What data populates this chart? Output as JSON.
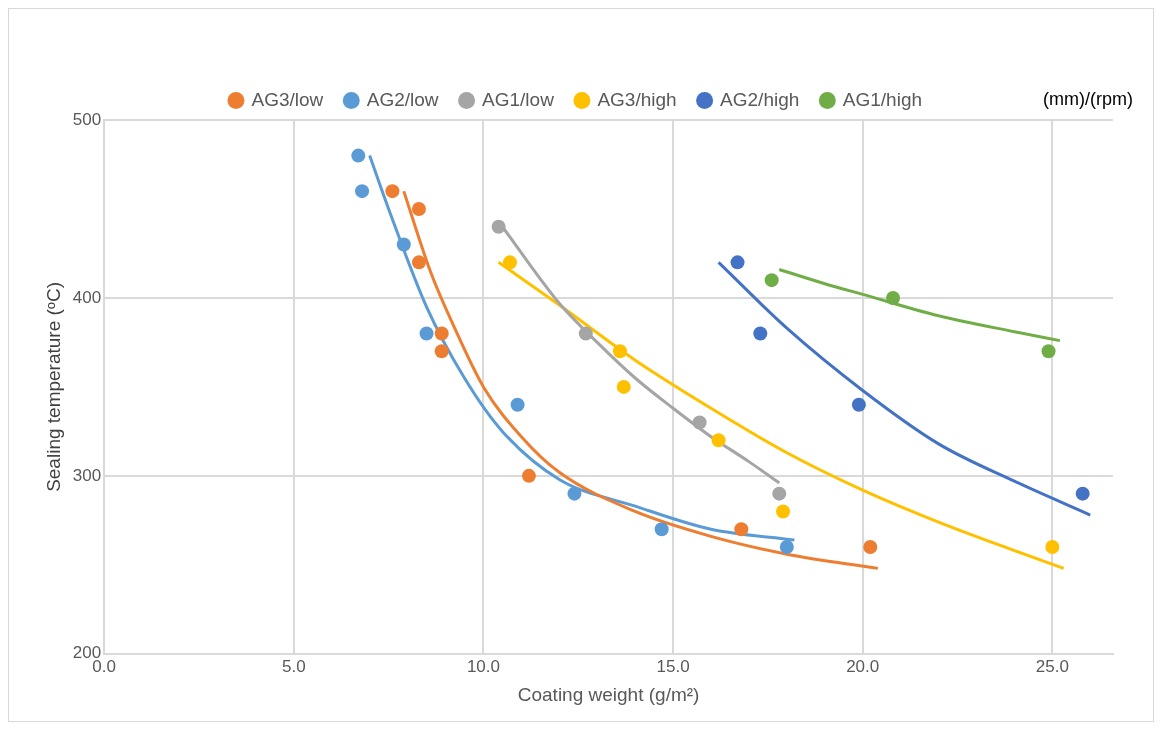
{
  "chart_data": {
    "type": "scatter",
    "xlabel": "Coating weight (g/m²)",
    "ylabel": "Sealing temperature (ᵒC)",
    "annotations": [
      "(mm)/(rpm)"
    ],
    "xlim": [
      0,
      26.6
    ],
    "xticks": [
      {
        "value": 0,
        "label": "0.0"
      },
      {
        "value": 5,
        "label": "5.0"
      },
      {
        "value": 10,
        "label": "10.0"
      },
      {
        "value": 15,
        "label": "15.0"
      },
      {
        "value": 20,
        "label": "20.0"
      },
      {
        "value": 25,
        "label": "25.0"
      }
    ],
    "ylim": [
      200,
      500
    ],
    "yticks": [
      200,
      300,
      400,
      500
    ],
    "grid": true,
    "legend": "top",
    "marker": "circle",
    "series": [
      {
        "name": "AG3/low",
        "color": "#ed7d31",
        "x": [
          7.6,
          8.3,
          8.3,
          8.9,
          8.9,
          11.2,
          16.8,
          20.2
        ],
        "values": [
          460,
          450,
          420,
          380,
          370,
          300,
          270,
          260
        ]
      },
      {
        "name": "AG2/low",
        "color": "#5b9bd5",
        "x": [
          6.7,
          6.8,
          7.9,
          8.5,
          10.9,
          12.4,
          14.7,
          18.0
        ],
        "values": [
          480,
          460,
          430,
          380,
          340,
          290,
          270,
          260
        ]
      },
      {
        "name": "AG1/low",
        "color": "#a5a5a5",
        "x": [
          10.4,
          12.7,
          15.7,
          17.8
        ],
        "values": [
          440,
          380,
          330,
          290
        ]
      },
      {
        "name": "AG3/high",
        "color": "#ffc000",
        "x": [
          10.7,
          13.6,
          13.7,
          16.2,
          17.9,
          25.0
        ],
        "values": [
          420,
          370,
          350,
          320,
          280,
          260
        ]
      },
      {
        "name": "AG2/high",
        "color": "#4472c4",
        "x": [
          16.7,
          17.3,
          19.9,
          25.8
        ],
        "values": [
          420,
          380,
          340,
          290
        ]
      },
      {
        "name": "AG1/high",
        "color": "#70ad47",
        "x": [
          17.6,
          20.8,
          24.9
        ],
        "values": [
          410,
          400,
          370
        ]
      },
      {
        "type": "line",
        "marker": "none",
        "color": "#ed7d31",
        "x": [
          7.9,
          8.6,
          9.2,
          10,
          11,
          12,
          14,
          16,
          18,
          20.4
        ],
        "values": [
          460,
          415,
          385,
          350,
          322,
          302,
          280,
          266,
          256,
          248
        ]
      },
      {
        "type": "line",
        "marker": "none",
        "color": "#5b9bd5",
        "x": [
          7.0,
          7.5,
          8.5,
          9.5,
          10.5,
          12,
          14,
          16,
          18.2
        ],
        "values": [
          480,
          450,
          395,
          355,
          325,
          298,
          283,
          270,
          264
        ]
      },
      {
        "type": "line",
        "marker": "none",
        "color": "#a5a5a5",
        "x": [
          10.5,
          12,
          13,
          14,
          15,
          16,
          17,
          17.8
        ],
        "values": [
          440,
          397,
          375,
          355,
          338,
          322,
          308,
          296
        ]
      },
      {
        "type": "line",
        "marker": "none",
        "color": "#ffc000",
        "x": [
          10.4,
          12,
          14,
          16,
          18,
          20,
          22,
          24,
          25.3
        ],
        "values": [
          420,
          396,
          365,
          338,
          313,
          292,
          274,
          258,
          248
        ]
      },
      {
        "type": "line",
        "marker": "none",
        "color": "#4472c4",
        "x": [
          16.2,
          18,
          20,
          22,
          24,
          26
        ],
        "values": [
          420,
          383,
          348,
          318,
          297,
          278
        ]
      },
      {
        "type": "line",
        "marker": "none",
        "color": "#70ad47",
        "x": [
          17.8,
          19,
          20,
          22,
          24,
          25.2
        ],
        "values": [
          416,
          408,
          402,
          390,
          381,
          376
        ]
      }
    ]
  }
}
